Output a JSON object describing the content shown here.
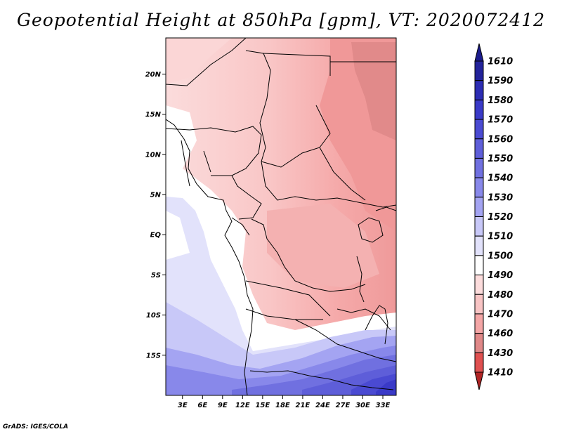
{
  "title": "Geopotential Height at 850hPa [gpm], VT: 2020072412",
  "credit": "GrADS: IGES/COLA",
  "map": {
    "lat_labels": [
      {
        "lat": 20,
        "text": "20N"
      },
      {
        "lat": 15,
        "text": "15N"
      },
      {
        "lat": 10,
        "text": "10N"
      },
      {
        "lat": 5,
        "text": "5N"
      },
      {
        "lat": 0,
        "text": "EQ"
      },
      {
        "lat": -5,
        "text": "5S"
      },
      {
        "lat": -10,
        "text": "10S"
      },
      {
        "lat": -15,
        "text": "15S"
      }
    ],
    "lon_labels": [
      {
        "lon": 3,
        "text": "3E"
      },
      {
        "lon": 6,
        "text": "6E"
      },
      {
        "lon": 9,
        "text": "9E"
      },
      {
        "lon": 12,
        "text": "12E"
      },
      {
        "lon": 15,
        "text": "15E"
      },
      {
        "lon": 18,
        "text": "18E"
      },
      {
        "lon": 21,
        "text": "21E"
      },
      {
        "lon": 24,
        "text": "24E"
      },
      {
        "lon": 27,
        "text": "27E"
      },
      {
        "lon": 30,
        "text": "30E"
      },
      {
        "lon": 33,
        "text": "33E"
      }
    ]
  },
  "colorbar": {
    "levels": [
      {
        "value": "1610",
        "color": "#23239b"
      },
      {
        "value": "1590",
        "color": "#2d2db4"
      },
      {
        "value": "1580",
        "color": "#3a3ac8"
      },
      {
        "value": "1570",
        "color": "#4a4ad2"
      },
      {
        "value": "1560",
        "color": "#5e5ed9"
      },
      {
        "value": "1550",
        "color": "#7070e0"
      },
      {
        "value": "1540",
        "color": "#8888ea"
      },
      {
        "value": "1530",
        "color": "#a4a4f2"
      },
      {
        "value": "1520",
        "color": "#c8c8f8"
      },
      {
        "value": "1510",
        "color": "#e2e2fb"
      },
      {
        "value": "1500",
        "color": "#ffffff"
      },
      {
        "value": "1490",
        "color": "#fcdcdc"
      },
      {
        "value": "1480",
        "color": "#f8c4c4"
      },
      {
        "value": "1470",
        "color": "#f4a6a6"
      },
      {
        "value": "1460",
        "color": "#e08888"
      },
      {
        "value": "1430",
        "color": "#e05050"
      },
      {
        "value": "1410",
        "color": "#cc3030"
      }
    ],
    "top_cap_color": "#1c1c8c",
    "bottom_cap_color": "#b02424"
  }
}
